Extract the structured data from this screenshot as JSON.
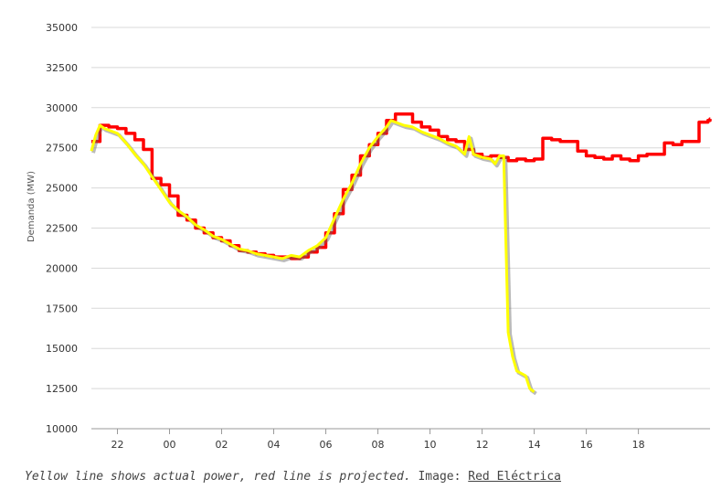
{
  "chart_data": {
    "type": "line",
    "title": "",
    "xlabel": "",
    "ylabel": "Demanda (MW)",
    "ylim": [
      10000,
      35000
    ],
    "yticks": [
      10000,
      12500,
      15000,
      17500,
      20000,
      22500,
      25000,
      27500,
      30000,
      32500,
      35000
    ],
    "xlim": [
      21.0,
      19.75
    ],
    "xtick_labels": [
      "22",
      "00",
      "02",
      "04",
      "06",
      "08",
      "10",
      "12",
      "14",
      "16",
      "18"
    ],
    "grid": "horizontal",
    "series": [
      {
        "color": "#ff0000",
        "style": "step",
        "points": [
          [
            21.0,
            27900
          ],
          [
            21.33,
            28900
          ],
          [
            21.67,
            28800
          ],
          [
            22.0,
            28700
          ],
          [
            22.33,
            28400
          ],
          [
            22.67,
            28000
          ],
          [
            23.0,
            27400
          ],
          [
            23.33,
            25600
          ],
          [
            23.67,
            25200
          ],
          [
            24.0,
            24500
          ],
          [
            24.33,
            23300
          ],
          [
            24.67,
            23000
          ],
          [
            25.0,
            22500
          ],
          [
            25.33,
            22200
          ],
          [
            25.67,
            21900
          ],
          [
            26.0,
            21700
          ],
          [
            26.33,
            21400
          ],
          [
            26.67,
            21100
          ],
          [
            27.0,
            21000
          ],
          [
            27.33,
            20900
          ],
          [
            27.67,
            20800
          ],
          [
            28.0,
            20700
          ],
          [
            28.33,
            20700
          ],
          [
            28.67,
            20600
          ],
          [
            29.0,
            20700
          ],
          [
            29.33,
            21000
          ],
          [
            29.67,
            21300
          ],
          [
            30.0,
            22200
          ],
          [
            30.33,
            23400
          ],
          [
            30.67,
            24900
          ],
          [
            31.0,
            25800
          ],
          [
            31.33,
            27000
          ],
          [
            31.67,
            27700
          ],
          [
            32.0,
            28400
          ],
          [
            32.33,
            29200
          ],
          [
            32.67,
            29600
          ],
          [
            33.0,
            29600
          ],
          [
            33.33,
            29100
          ],
          [
            33.67,
            28800
          ],
          [
            34.0,
            28600
          ],
          [
            34.33,
            28200
          ],
          [
            34.67,
            28000
          ],
          [
            35.0,
            27900
          ],
          [
            35.33,
            27400
          ],
          [
            35.67,
            27100
          ],
          [
            36.0,
            26900
          ],
          [
            36.33,
            27000
          ],
          [
            36.67,
            26900
          ],
          [
            37.0,
            26700
          ],
          [
            37.33,
            26800
          ],
          [
            37.67,
            26700
          ],
          [
            38.0,
            26800
          ],
          [
            38.33,
            28100
          ],
          [
            38.67,
            28000
          ],
          [
            39.0,
            27900
          ],
          [
            39.33,
            27900
          ],
          [
            39.67,
            27300
          ],
          [
            40.0,
            27000
          ],
          [
            40.33,
            26900
          ],
          [
            40.67,
            26800
          ],
          [
            41.0,
            27000
          ],
          [
            41.33,
            26800
          ],
          [
            41.67,
            26700
          ],
          [
            42.0,
            27000
          ],
          [
            42.33,
            27100
          ],
          [
            42.67,
            27100
          ],
          [
            43.0,
            27800
          ],
          [
            43.33,
            27700
          ],
          [
            43.67,
            27900
          ],
          [
            44.0,
            27900
          ],
          [
            44.33,
            29100
          ],
          [
            44.67,
            29200
          ],
          [
            44.75,
            29300
          ]
        ]
      },
      {
        "color": "#ffff00",
        "style": "line",
        "points": [
          [
            21.0,
            27300
          ],
          [
            21.17,
            28300
          ],
          [
            21.33,
            28900
          ],
          [
            21.5,
            28700
          ],
          [
            21.67,
            28600
          ],
          [
            22.0,
            28400
          ],
          [
            22.33,
            27800
          ],
          [
            22.67,
            27100
          ],
          [
            23.0,
            26500
          ],
          [
            23.33,
            25700
          ],
          [
            23.67,
            24900
          ],
          [
            24.0,
            24100
          ],
          [
            24.33,
            23600
          ],
          [
            24.67,
            23200
          ],
          [
            25.0,
            22700
          ],
          [
            25.33,
            22400
          ],
          [
            25.67,
            22000
          ],
          [
            26.0,
            21800
          ],
          [
            26.33,
            21500
          ],
          [
            26.67,
            21200
          ],
          [
            27.0,
            21100
          ],
          [
            27.33,
            20900
          ],
          [
            27.67,
            20800
          ],
          [
            28.0,
            20700
          ],
          [
            28.33,
            20600
          ],
          [
            28.67,
            20800
          ],
          [
            29.0,
            20700
          ],
          [
            29.33,
            21100
          ],
          [
            29.67,
            21400
          ],
          [
            30.0,
            21900
          ],
          [
            30.33,
            23100
          ],
          [
            30.67,
            24300
          ],
          [
            31.0,
            25300
          ],
          [
            31.33,
            26500
          ],
          [
            31.67,
            27500
          ],
          [
            32.0,
            28200
          ],
          [
            32.33,
            28800
          ],
          [
            32.5,
            29200
          ],
          [
            32.67,
            29100
          ],
          [
            33.0,
            28900
          ],
          [
            33.33,
            28800
          ],
          [
            33.67,
            28500
          ],
          [
            34.0,
            28300
          ],
          [
            34.33,
            28100
          ],
          [
            34.67,
            27800
          ],
          [
            35.0,
            27600
          ],
          [
            35.33,
            27100
          ],
          [
            35.5,
            28200
          ],
          [
            35.67,
            27100
          ],
          [
            36.0,
            26900
          ],
          [
            36.33,
            26800
          ],
          [
            36.5,
            26500
          ],
          [
            36.67,
            27000
          ],
          [
            36.83,
            27000
          ],
          [
            37.0,
            16000
          ],
          [
            37.17,
            14500
          ],
          [
            37.33,
            13600
          ],
          [
            37.67,
            13300
          ],
          [
            37.83,
            12500
          ],
          [
            38.0,
            12300
          ]
        ]
      }
    ]
  },
  "caption": {
    "note": "Yellow line shows actual power, red line is projected.",
    "image_label": "Image:",
    "source_link": "Red Eléctrica"
  }
}
